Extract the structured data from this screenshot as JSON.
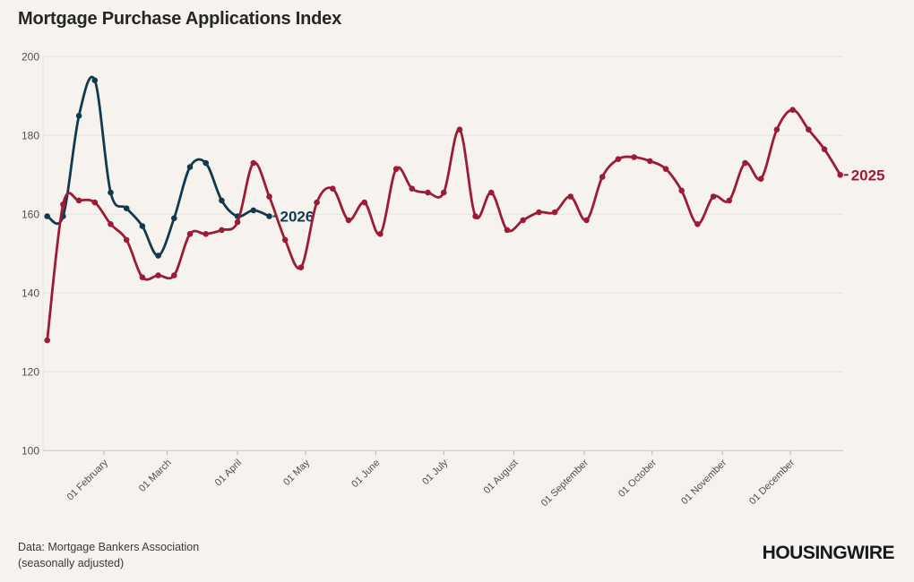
{
  "page": {
    "title": "Mortgage Purchase Applications Index",
    "source_note_line1": "Data: Mortgage Bankers Association",
    "source_note_line2": "(seasonally adjusted)",
    "brand_logo": "HOUSINGWIRE"
  },
  "colors": {
    "background": "#f6f3ee",
    "series_2025": "#9b1c34",
    "series_2026": "#133a4c",
    "gridline": "#e8e4dc",
    "axis_line": "#c9c5bd",
    "tick_mark": "#b9b5ad",
    "tick_label": "#4f4f4f",
    "title_text": "#262626",
    "footer_text": "#3a3a3a",
    "logo_text": "#15181c"
  },
  "chart_data": {
    "type": "line",
    "title": "Mortgage Purchase Applications Index",
    "xlabel": "",
    "ylabel": "",
    "ylim": [
      100,
      200
    ],
    "yticks": [
      200,
      180,
      160,
      140,
      120,
      100
    ],
    "x_tick_labels": [
      "01 February",
      "01 March",
      "01 April",
      "01 May",
      "01 June",
      "01 July",
      "01 August",
      "01 September",
      "01 October",
      "01 November",
      "01 December"
    ],
    "x_tick_day_of_year": [
      32,
      60,
      91,
      121,
      152,
      182,
      213,
      244,
      274,
      305,
      335
    ],
    "x_unit": "week",
    "first_point_day_of_year": 7,
    "grid": "horizontal-only",
    "legend": "end-of-line-labels",
    "series": [
      {
        "name": "2025",
        "color": "#9b1c34",
        "values": [
          128,
          162.5,
          163.5,
          163,
          157.5,
          153.5,
          144,
          144.5,
          144.5,
          155,
          155,
          156,
          158,
          173,
          164.5,
          153.5,
          146.5,
          163,
          166.5,
          158.5,
          163,
          155,
          171.5,
          166.5,
          165.5,
          165.5,
          181.5,
          159.5,
          165.5,
          156,
          158.5,
          160.5,
          160.5,
          164.5,
          158.5,
          169.5,
          174,
          174.5,
          173.5,
          171.5,
          166,
          157.5,
          164.5,
          163.5,
          173,
          169,
          181.5,
          186.5,
          181.5,
          176.5,
          170
        ]
      },
      {
        "name": "2026",
        "color": "#133a4c",
        "values": [
          159.5,
          159.5,
          185,
          194,
          165.5,
          161.5,
          157,
          149.5,
          159,
          172,
          173,
          163.5,
          159.5,
          161,
          159.5
        ]
      }
    ]
  }
}
